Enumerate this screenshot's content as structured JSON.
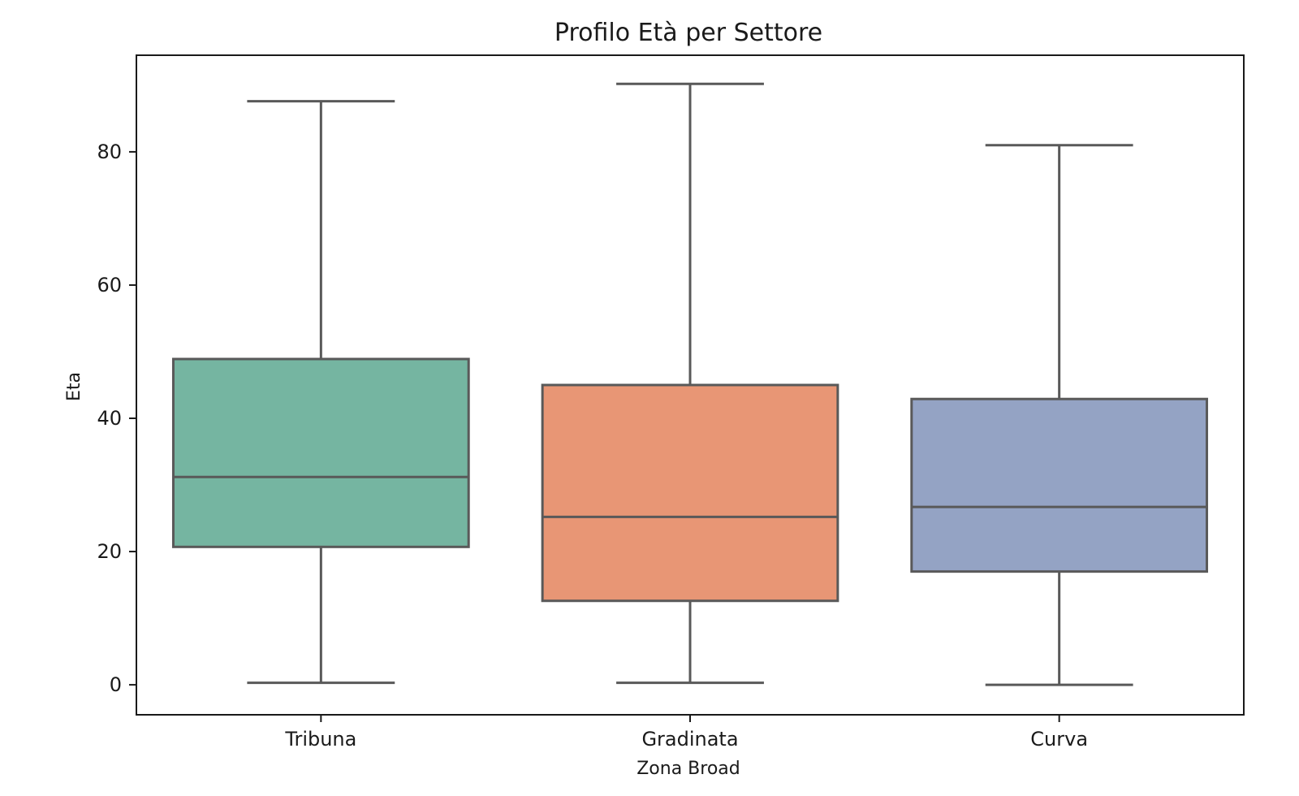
{
  "chart_data": {
    "type": "box",
    "title": "Profilo Età per Settore",
    "xlabel": "Zona Broad",
    "ylabel": "Eta",
    "ylim": [
      -4.5,
      94.5
    ],
    "yticks": [
      0,
      20,
      40,
      60,
      80
    ],
    "grid": false,
    "categories": [
      "Tribuna",
      "Gradinata",
      "Curva"
    ],
    "colors": [
      "#75b5a1",
      "#e89675",
      "#94a3c4"
    ],
    "boxes": [
      {
        "category": "Tribuna",
        "whisker_low": 0.3,
        "q1": 20.7,
        "median": 31.2,
        "q3": 48.9,
        "whisker_high": 87.6
      },
      {
        "category": "Gradinata",
        "whisker_low": 0.3,
        "q1": 12.6,
        "median": 25.2,
        "q3": 45.0,
        "whisker_high": 90.2
      },
      {
        "category": "Curva",
        "whisker_low": 0.0,
        "q1": 17.0,
        "median": 26.7,
        "q3": 42.9,
        "whisker_high": 81.0
      }
    ]
  }
}
